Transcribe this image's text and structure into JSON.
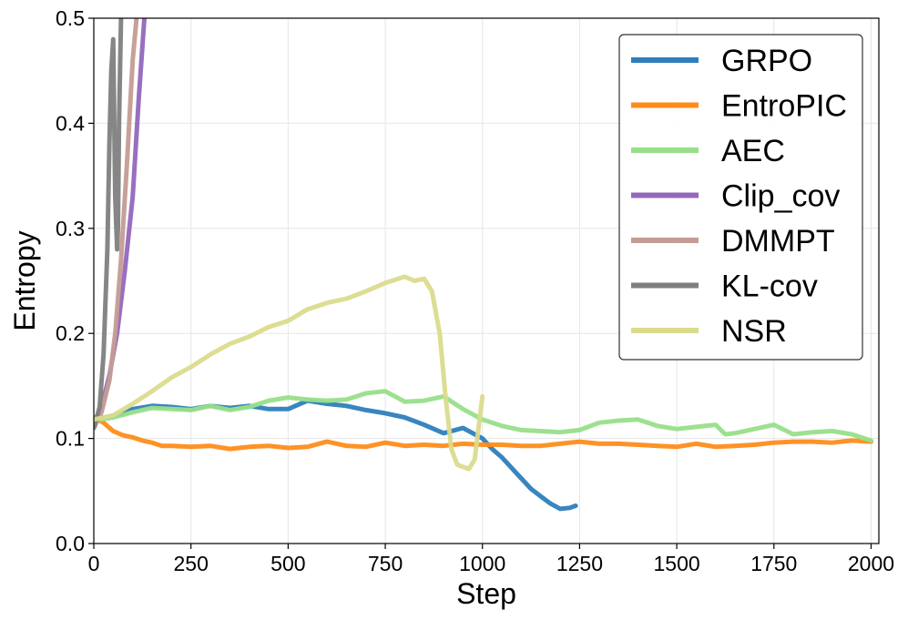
{
  "chart_data": {
    "type": "line",
    "xlabel": "Step",
    "ylabel": "Entropy",
    "xlim": [
      0,
      2020
    ],
    "ylim": [
      0.0,
      0.5
    ],
    "xticks": [
      0,
      250,
      500,
      750,
      1000,
      1250,
      1500,
      1750,
      2000
    ],
    "yticks": [
      0.0,
      0.1,
      0.2,
      0.3,
      0.4,
      0.5
    ],
    "xtick_labels": [
      "0",
      "250",
      "500",
      "750",
      "1000",
      "1250",
      "1500",
      "1750",
      "2000"
    ],
    "ytick_labels": [
      "0.0",
      "0.1",
      "0.2",
      "0.3",
      "0.4",
      "0.5"
    ],
    "grid": true,
    "legend_position": "top-right",
    "series": [
      {
        "name": "GRPO",
        "color": "#2e7ebc",
        "x": [
          0,
          25,
          50,
          75,
          100,
          150,
          200,
          250,
          300,
          350,
          400,
          450,
          500,
          550,
          600,
          650,
          700,
          750,
          800,
          850,
          900,
          950,
          1000,
          1025,
          1050,
          1075,
          1100,
          1125,
          1150,
          1175,
          1200,
          1225,
          1240
        ],
        "y": [
          0.12,
          0.12,
          0.121,
          0.124,
          0.128,
          0.131,
          0.13,
          0.128,
          0.131,
          0.129,
          0.131,
          0.128,
          0.128,
          0.136,
          0.133,
          0.131,
          0.127,
          0.124,
          0.12,
          0.113,
          0.105,
          0.11,
          0.1,
          0.09,
          0.082,
          0.072,
          0.062,
          0.052,
          0.045,
          0.038,
          0.033,
          0.034,
          0.036
        ]
      },
      {
        "name": "EntroPIC",
        "color": "#ff8c1a",
        "x": [
          0,
          25,
          50,
          75,
          100,
          125,
          150,
          175,
          200,
          250,
          300,
          350,
          400,
          450,
          500,
          550,
          600,
          650,
          700,
          750,
          800,
          850,
          900,
          950,
          1000,
          1050,
          1100,
          1150,
          1200,
          1250,
          1300,
          1350,
          1400,
          1450,
          1500,
          1550,
          1600,
          1650,
          1700,
          1750,
          1800,
          1850,
          1900,
          1950,
          2000
        ],
        "y": [
          0.12,
          0.115,
          0.107,
          0.103,
          0.101,
          0.098,
          0.096,
          0.093,
          0.093,
          0.092,
          0.093,
          0.09,
          0.092,
          0.093,
          0.091,
          0.092,
          0.097,
          0.093,
          0.092,
          0.096,
          0.093,
          0.094,
          0.093,
          0.095,
          0.094,
          0.094,
          0.093,
          0.093,
          0.095,
          0.097,
          0.095,
          0.095,
          0.094,
          0.093,
          0.092,
          0.095,
          0.092,
          0.093,
          0.094,
          0.096,
          0.097,
          0.097,
          0.096,
          0.098,
          0.097
        ]
      },
      {
        "name": "AEC",
        "color": "#98df8a",
        "x": [
          0,
          50,
          100,
          150,
          200,
          250,
          300,
          350,
          400,
          450,
          500,
          550,
          600,
          650,
          700,
          750,
          800,
          850,
          900,
          950,
          1000,
          1050,
          1100,
          1150,
          1200,
          1250,
          1300,
          1350,
          1400,
          1450,
          1500,
          1550,
          1600,
          1625,
          1650,
          1700,
          1750,
          1800,
          1850,
          1900,
          1950,
          2000
        ],
        "y": [
          0.117,
          0.12,
          0.125,
          0.129,
          0.128,
          0.127,
          0.131,
          0.127,
          0.13,
          0.136,
          0.139,
          0.137,
          0.136,
          0.137,
          0.143,
          0.145,
          0.135,
          0.136,
          0.14,
          0.128,
          0.118,
          0.112,
          0.108,
          0.107,
          0.106,
          0.108,
          0.115,
          0.117,
          0.118,
          0.112,
          0.109,
          0.111,
          0.113,
          0.104,
          0.105,
          0.109,
          0.113,
          0.104,
          0.106,
          0.107,
          0.104,
          0.098
        ]
      },
      {
        "name": "Clip_cov",
        "color": "#9467bd",
        "x": [
          0,
          20,
          40,
          60,
          80,
          100,
          115,
          130
        ],
        "y": [
          0.11,
          0.13,
          0.16,
          0.2,
          0.26,
          0.33,
          0.42,
          0.5
        ]
      },
      {
        "name": "DMMPT",
        "color": "#c49c94",
        "x": [
          0,
          20,
          40,
          55,
          70,
          85,
          100,
          110
        ],
        "y": [
          0.11,
          0.125,
          0.155,
          0.2,
          0.27,
          0.36,
          0.46,
          0.5
        ]
      },
      {
        "name": "KL-cov",
        "color": "#7f7f7f",
        "x": [
          0,
          15,
          25,
          35,
          40,
          45,
          50,
          55,
          60,
          62,
          65,
          68,
          70
        ],
        "y": [
          0.11,
          0.13,
          0.18,
          0.28,
          0.38,
          0.45,
          0.48,
          0.33,
          0.28,
          0.3,
          0.4,
          0.46,
          0.5
        ]
      },
      {
        "name": "NSR",
        "color": "#dbdb8d",
        "x": [
          0,
          50,
          100,
          150,
          200,
          250,
          300,
          350,
          400,
          450,
          500,
          550,
          600,
          650,
          700,
          750,
          800,
          825,
          850,
          870,
          890,
          905,
          920,
          935,
          950,
          965,
          980,
          990,
          1000
        ],
        "y": [
          0.118,
          0.122,
          0.133,
          0.145,
          0.158,
          0.168,
          0.18,
          0.19,
          0.197,
          0.206,
          0.212,
          0.223,
          0.229,
          0.233,
          0.24,
          0.248,
          0.254,
          0.25,
          0.252,
          0.24,
          0.2,
          0.14,
          0.09,
          0.075,
          0.073,
          0.071,
          0.08,
          0.11,
          0.14
        ]
      }
    ]
  }
}
